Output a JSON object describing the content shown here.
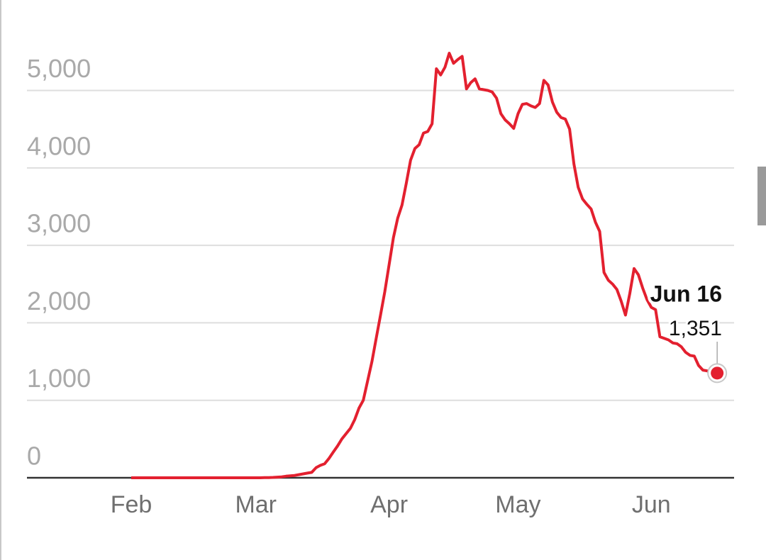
{
  "chart_data": {
    "type": "line",
    "categories": [
      "Feb",
      null,
      null,
      null,
      null,
      null,
      null,
      null,
      null,
      null,
      null,
      null,
      null,
      null,
      null,
      null,
      null,
      null,
      null,
      null,
      null,
      null,
      null,
      null,
      null,
      null,
      null,
      null,
      null,
      "Mar",
      null,
      null,
      null,
      null,
      null,
      null,
      null,
      null,
      null,
      null,
      null,
      null,
      null,
      null,
      null,
      null,
      null,
      null,
      null,
      null,
      null,
      null,
      null,
      null,
      null,
      null,
      null,
      null,
      null,
      null,
      "Apr",
      null,
      null,
      null,
      null,
      null,
      null,
      null,
      null,
      null,
      null,
      null,
      null,
      null,
      null,
      null,
      null,
      null,
      null,
      null,
      null,
      null,
      null,
      null,
      null,
      null,
      null,
      null,
      null,
      null,
      "May",
      null,
      null,
      null,
      null,
      null,
      null,
      null,
      null,
      null,
      null,
      null,
      null,
      null,
      null,
      null,
      null,
      null,
      null,
      null,
      null,
      null,
      null,
      null,
      null,
      null,
      null,
      null,
      null,
      null,
      null,
      "Jun",
      null,
      null,
      null,
      null,
      null,
      null,
      null,
      null,
      null,
      null,
      null,
      null,
      null,
      null,
      null
    ],
    "series": [
      {
        "color": "#e3202f",
        "values": [
          0,
          0,
          0,
          0,
          0,
          0,
          0,
          0,
          0,
          0,
          0,
          0,
          0,
          0,
          0,
          0,
          0,
          0,
          0,
          0,
          0,
          0,
          0,
          0,
          0,
          0,
          0,
          0,
          0,
          0,
          0,
          2,
          3,
          5,
          8,
          12,
          20,
          25,
          30,
          40,
          50,
          60,
          70,
          130,
          160,
          180,
          250,
          330,
          410,
          500,
          570,
          640,
          750,
          900,
          1000,
          1250,
          1500,
          1800,
          2100,
          2400,
          2750,
          3100,
          3350,
          3520,
          3800,
          4100,
          4250,
          4300,
          4450,
          4470,
          4570,
          5280,
          5200,
          5300,
          5480,
          5350,
          5400,
          5440,
          5020,
          5100,
          5150,
          5020,
          5010,
          5000,
          4980,
          4900,
          4700,
          4620,
          4570,
          4510,
          4700,
          4820,
          4830,
          4800,
          4780,
          4830,
          5130,
          5070,
          4850,
          4720,
          4650,
          4630,
          4500,
          4050,
          3750,
          3600,
          3530,
          3470,
          3300,
          3180,
          2650,
          2550,
          2500,
          2430,
          2280,
          2100,
          2380,
          2700,
          2620,
          2450,
          2300,
          2200,
          2170,
          1820,
          1800,
          1780,
          1740,
          1730,
          1690,
          1620,
          1580,
          1570,
          1450,
          1390,
          1380,
          1360,
          1351
        ]
      }
    ],
    "ylim": [
      0,
      5600
    ],
    "yticks": [
      0,
      {
        "value": 1000,
        "label": "1,000"
      },
      {
        "value": 2000,
        "label": "2,000"
      },
      {
        "value": 3000,
        "label": "3,000"
      },
      {
        "value": 4000,
        "label": "4,000"
      },
      {
        "value": 5000,
        "label": "5,000"
      }
    ],
    "grid": true,
    "annotation": {
      "text": "Jun 16",
      "value_label": "1,351"
    }
  }
}
